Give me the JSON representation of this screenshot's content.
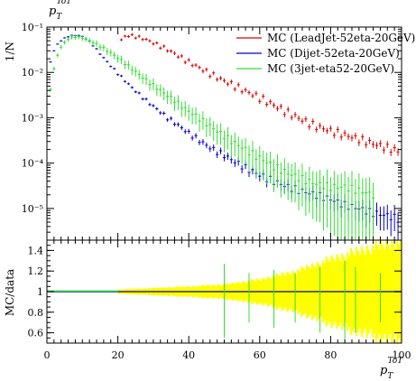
{
  "chart_data": [
    {
      "type": "line",
      "panel": "main",
      "title": "p_T^{ToT}",
      "xlabel": "",
      "ylabel": "1/N",
      "yscale": "log",
      "xlim": [
        0,
        100
      ],
      "ylim": [
        2e-06,
        0.1
      ],
      "yticks": [
        {
          "value": 0.1,
          "label": "10⁻¹"
        },
        {
          "value": 0.01,
          "label": "10⁻²"
        },
        {
          "value": 0.001,
          "label": "10⁻³"
        },
        {
          "value": 0.0001,
          "label": "10⁻⁴"
        },
        {
          "value": 1e-05,
          "label": "10⁻⁵"
        }
      ],
      "legend_position": "top-right",
      "series": [
        {
          "name": "MC (LeadJet-52eta-20GeV)",
          "color": "#dd0000",
          "x": [
            21,
            22,
            23,
            24,
            25,
            26,
            28,
            30,
            32,
            34,
            36,
            38,
            40,
            44,
            48,
            52,
            56,
            60,
            64,
            68,
            72,
            76,
            80,
            84,
            88,
            92,
            96,
            99.5
          ],
          "y": [
            0.052,
            0.062,
            0.065,
            0.064,
            0.062,
            0.059,
            0.053,
            0.045,
            0.038,
            0.032,
            0.026,
            0.021,
            0.017,
            0.0115,
            0.0078,
            0.0055,
            0.0039,
            0.0028,
            0.0019,
            0.0013,
            0.0009,
            0.00065,
            0.00052,
            0.00042,
            0.00034,
            0.00027,
            0.00022,
            0.00018
          ]
        },
        {
          "name": "MC (Dijet-52eta-20GeV)",
          "color": "#0000cc",
          "x": [
            1,
            2,
            3,
            4,
            5,
            6,
            7,
            8,
            9,
            10,
            11,
            12,
            13,
            14,
            16,
            18,
            20,
            22,
            24,
            26,
            28,
            30,
            32,
            34,
            36,
            38,
            40,
            42,
            44,
            46,
            48,
            50,
            52,
            56,
            60,
            64,
            68,
            72,
            76,
            80,
            84,
            88,
            92,
            96,
            99
          ],
          "y": [
            0.017,
            0.03,
            0.042,
            0.05,
            0.057,
            0.062,
            0.065,
            0.066,
            0.065,
            0.062,
            0.056,
            0.048,
            0.04,
            0.032,
            0.021,
            0.014,
            0.0095,
            0.0066,
            0.0046,
            0.0033,
            0.0024,
            0.0018,
            0.00135,
            0.001,
            0.00078,
            0.0006,
            0.00046,
            0.00036,
            0.00028,
            0.00022,
            0.00018,
            0.00015,
            0.00012,
            8e-05,
            5.5e-05,
            4e-05,
            3e-05,
            2.4e-05,
            2e-05,
            1.6e-05,
            1.2e-05,
            1e-05,
            8e-06,
            7e-06,
            6e-06
          ]
        },
        {
          "name": "MC (3jet-eta52-20GeV)",
          "color": "#33dd33",
          "x": [
            1,
            2,
            3,
            4,
            5,
            6,
            7,
            8,
            9,
            10,
            11,
            12,
            14,
            16,
            18,
            20,
            22,
            24,
            26,
            28,
            30,
            32,
            34,
            36,
            38,
            40,
            42,
            44,
            46,
            48,
            50,
            52,
            56,
            60,
            64,
            68,
            72,
            76,
            80,
            84,
            88,
            92
          ],
          "y": [
            0.0042,
            0.012,
            0.024,
            0.036,
            0.046,
            0.054,
            0.059,
            0.061,
            0.06,
            0.058,
            0.054,
            0.05,
            0.042,
            0.034,
            0.027,
            0.021,
            0.016,
            0.012,
            0.009,
            0.0068,
            0.0052,
            0.004,
            0.0031,
            0.0024,
            0.0018,
            0.0014,
            0.0011,
            0.00085,
            0.00066,
            0.00051,
            0.0004,
            0.00031,
            0.0002,
            0.00013,
            8.5e-05,
            6e-05,
            4.5e-05,
            3.5e-05,
            3e-05,
            3e-05,
            2.5e-05,
            2e-05
          ]
        }
      ]
    },
    {
      "type": "bar",
      "panel": "ratio",
      "xlabel": "p_T^{ToT}",
      "ylabel": "MC/data",
      "xlim": [
        0,
        100
      ],
      "ylim": [
        0.5,
        1.5
      ],
      "xticks": [
        0,
        20,
        40,
        60,
        80,
        100
      ],
      "yticks": [
        0.6,
        0.8,
        1,
        1.2,
        1.4
      ],
      "band": {
        "color": "#ffff00",
        "x_start": 20,
        "x_end": 100,
        "half_width": [
          [
            20,
            0.02
          ],
          [
            30,
            0.035
          ],
          [
            40,
            0.05
          ],
          [
            50,
            0.07
          ],
          [
            60,
            0.12
          ],
          [
            70,
            0.2
          ],
          [
            80,
            0.32
          ],
          [
            90,
            0.42
          ],
          [
            100,
            0.5
          ]
        ]
      },
      "reference_line": 1,
      "series": [
        {
          "name": "MC (LeadJet-52eta-20GeV)",
          "color": "#dd0000",
          "values": [
            1
          ]
        },
        {
          "name": "MC (Dijet-52eta-20GeV)",
          "color": "#0000cc",
          "values": [
            1
          ]
        },
        {
          "name": "MC (3jet-eta52-20GeV)",
          "color": "#33dd33",
          "values": [
            1
          ]
        }
      ]
    }
  ]
}
